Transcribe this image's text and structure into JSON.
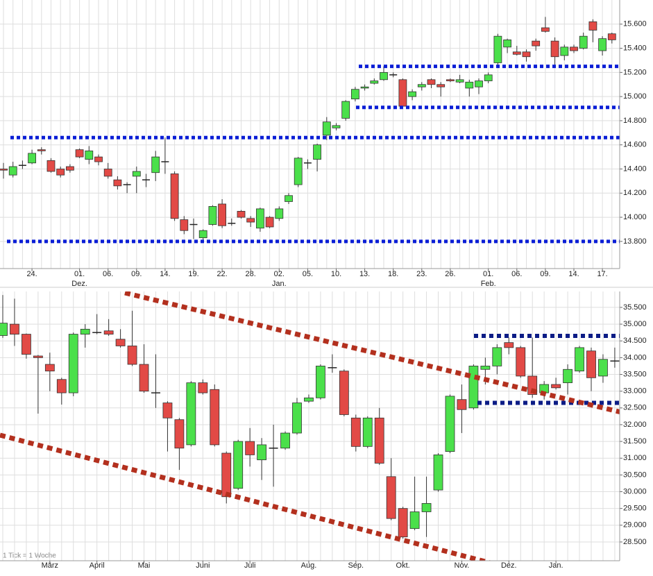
{
  "chart_data": [
    {
      "type": "candlestick",
      "categories": [
        null,
        null,
        null,
        "24.",
        null,
        null,
        null,
        null,
        "01.",
        null,
        null,
        "06.",
        null,
        null,
        "09.",
        null,
        null,
        "14.",
        null,
        null,
        "19.",
        null,
        null,
        "22.",
        null,
        null,
        "28.",
        null,
        null,
        "02.",
        null,
        null,
        "05.",
        null,
        null,
        "10.",
        null,
        null,
        "13.",
        null,
        null,
        "18.",
        null,
        null,
        "23.",
        null,
        null,
        "26.",
        null,
        null,
        null,
        "01.",
        null,
        null,
        "06.",
        null,
        null,
        "09.",
        null,
        null,
        "14.",
        null,
        null,
        "17.",
        null
      ],
      "month_labels": [
        null,
        null,
        null,
        null,
        null,
        null,
        null,
        null,
        "Dez.",
        null,
        null,
        null,
        null,
        null,
        null,
        null,
        null,
        null,
        null,
        null,
        null,
        null,
        null,
        null,
        null,
        null,
        null,
        null,
        null,
        "Jan.",
        null,
        null,
        null,
        null,
        null,
        null,
        null,
        null,
        null,
        null,
        null,
        null,
        null,
        null,
        null,
        null,
        null,
        null,
        null,
        null,
        null,
        "Feb.",
        null,
        null,
        null,
        null,
        null,
        null,
        null,
        null,
        null,
        null,
        null,
        null,
        null
      ],
      "open": [
        14400,
        14350,
        14430,
        14450,
        14560,
        14470,
        14400,
        14420,
        14560,
        14480,
        14500,
        14400,
        14310,
        14270,
        14340,
        14310,
        14370,
        14460,
        14360,
        13980,
        13940,
        13830,
        13940,
        14110,
        13950,
        14050,
        13990,
        13910,
        14000,
        13990,
        14130,
        14270,
        14450,
        14480,
        14680,
        14740,
        14820,
        14980,
        15070,
        15110,
        15140,
        15180,
        15140,
        15000,
        15080,
        15140,
        15100,
        15140,
        15120,
        15070,
        15080,
        15130,
        15280,
        15410,
        15370,
        15370,
        15460,
        15570,
        15460,
        15340,
        15410,
        15400,
        15620,
        15380,
        15520
      ],
      "high": [
        14450,
        14460,
        14470,
        14560,
        14580,
        14490,
        14420,
        14440,
        14570,
        14590,
        14520,
        14450,
        14340,
        14290,
        14420,
        14360,
        14550,
        14660,
        14380,
        14010,
        13990,
        13900,
        14100,
        14150,
        13990,
        14060,
        14010,
        14080,
        14010,
        14090,
        14200,
        14500,
        14480,
        14610,
        14830,
        14780,
        14970,
        15080,
        15100,
        15150,
        15250,
        15200,
        15150,
        15060,
        15120,
        15150,
        15120,
        15150,
        15180,
        15140,
        15150,
        15200,
        15520,
        15480,
        15420,
        15390,
        15480,
        15660,
        15490,
        15430,
        15430,
        15530,
        15640,
        15500,
        15530
      ],
      "low": [
        14320,
        14330,
        14400,
        14440,
        14520,
        14370,
        14330,
        14370,
        14490,
        14440,
        14430,
        14320,
        14230,
        14200,
        14200,
        14250,
        14300,
        14360,
        13970,
        13860,
        13820,
        13810,
        13930,
        13910,
        13930,
        13990,
        13920,
        13880,
        13910,
        13970,
        14110,
        14250,
        14400,
        14380,
        14640,
        14720,
        14800,
        14960,
        15050,
        15100,
        15130,
        15160,
        14900,
        14970,
        15050,
        15070,
        15000,
        15120,
        15110,
        15000,
        15020,
        15110,
        15260,
        15360,
        15340,
        15290,
        15380,
        15530,
        15260,
        15300,
        15360,
        15390,
        15450,
        15340,
        15440
      ],
      "close": [
        14390,
        14420,
        14430,
        14530,
        14550,
        14380,
        14350,
        14390,
        14500,
        14550,
        14460,
        14340,
        14260,
        14270,
        14380,
        14310,
        14500,
        14460,
        13990,
        13890,
        13940,
        13890,
        14090,
        13930,
        13950,
        14000,
        13960,
        14070,
        13920,
        14070,
        14180,
        14490,
        14450,
        14600,
        14790,
        14760,
        14960,
        15060,
        15080,
        15130,
        15200,
        15180,
        14920,
        15040,
        15100,
        15100,
        15080,
        15130,
        15140,
        15120,
        15130,
        15180,
        15500,
        15470,
        15350,
        15330,
        15420,
        15540,
        15330,
        15410,
        15380,
        15500,
        15550,
        15480,
        15470
      ],
      "up_color": "#4be04b",
      "down_color": "#e24a46",
      "levels": [
        14660,
        13800,
        15250,
        14910
      ],
      "level_color": "#0a1ed6",
      "ylim": [
        13575,
        15800
      ],
      "yticks": [
        {
          "value": 13800,
          "label": "13.800"
        },
        {
          "value": 14000,
          "label": "14.000"
        },
        {
          "value": 14200,
          "label": "14.200"
        },
        {
          "value": 14400,
          "label": "14.400"
        },
        {
          "value": 14600,
          "label": "14.600"
        },
        {
          "value": 14800,
          "label": "14.800"
        },
        {
          "value": 15000,
          "label": "15.000"
        },
        {
          "value": 15200,
          "label": "15.200"
        },
        {
          "value": 15400,
          "label": "15.400"
        },
        {
          "value": 15600,
          "label": "15.600"
        }
      ],
      "grid": true
    },
    {
      "type": "candlestick",
      "categories": [
        null,
        null,
        null,
        null,
        "März",
        null,
        null,
        null,
        "April",
        null,
        null,
        null,
        "Mai",
        null,
        null,
        null,
        null,
        "Juni",
        null,
        null,
        null,
        "Juli",
        null,
        null,
        null,
        null,
        "Aug.",
        null,
        null,
        null,
        "Sep.",
        null,
        null,
        null,
        "Okt.",
        null,
        null,
        null,
        null,
        "Nov.",
        null,
        null,
        null,
        "Dez.",
        null,
        null,
        null,
        "Jan.",
        null,
        null,
        null,
        null,
        null
      ],
      "open": [
        34660,
        35000,
        34700,
        34050,
        33800,
        33350,
        32950,
        34700,
        34750,
        34800,
        34550,
        34350,
        33800,
        32950,
        32650,
        32150,
        31400,
        33250,
        33050,
        31150,
        30100,
        31500,
        30950,
        31300,
        31300,
        31750,
        32700,
        32800,
        33700,
        33600,
        32200,
        31350,
        32200,
        30450,
        29500,
        28900,
        29400,
        30050,
        31200,
        32750,
        32500,
        33650,
        33750,
        34450,
        34300,
        33450,
        32950,
        33200,
        33250,
        33600,
        34200,
        33450,
        33900
      ],
      "high": [
        35870,
        35760,
        34720,
        34080,
        34150,
        33400,
        34750,
        35000,
        35300,
        35150,
        34850,
        35400,
        34400,
        34100,
        32700,
        32200,
        33300,
        33350,
        33200,
        31200,
        31550,
        31900,
        31600,
        32000,
        31800,
        32800,
        32900,
        33800,
        34100,
        33650,
        32300,
        32250,
        32500,
        31000,
        29550,
        30450,
        30450,
        31150,
        32900,
        33200,
        33800,
        34000,
        34400,
        34600,
        34350,
        34600,
        33300,
        33400,
        33800,
        34350,
        34300,
        34100,
        34300
      ],
      "low": [
        34590,
        34350,
        33970,
        32330,
        33000,
        32600,
        32850,
        34300,
        34700,
        34650,
        34300,
        33750,
        32950,
        32500,
        31200,
        30650,
        31350,
        32900,
        31350,
        29650,
        30050,
        30750,
        30350,
        30150,
        31250,
        31700,
        32650,
        32750,
        33550,
        32250,
        31200,
        31300,
        30800,
        29150,
        28600,
        28850,
        28650,
        30000,
        31150,
        31750,
        32450,
        33200,
        33500,
        34100,
        33400,
        32800,
        32750,
        33050,
        32900,
        33550,
        33000,
        33250,
        33700
      ],
      "close": [
        35030,
        34700,
        34100,
        34000,
        33600,
        32950,
        34700,
        34850,
        34750,
        34700,
        34350,
        33800,
        33000,
        32950,
        32200,
        31300,
        33250,
        32950,
        31400,
        29850,
        31500,
        31100,
        31400,
        31300,
        31750,
        32650,
        32800,
        33750,
        33700,
        32300,
        31350,
        32200,
        30850,
        29200,
        28650,
        29400,
        29650,
        31100,
        32850,
        32450,
        33750,
        33750,
        34300,
        34300,
        33450,
        32900,
        33200,
        33100,
        33650,
        34300,
        33400,
        33950,
        33900
      ],
      "up_color": "#4be04b",
      "down_color": "#e24a46",
      "levels": [
        34650,
        32650
      ],
      "level_color": "#0c1c86",
      "trend_color": "#b3301e",
      "note": "1 Tick = 1 Woche",
      "ylim": [
        27940,
        35975
      ],
      "yticks": [
        {
          "value": 28500,
          "label": "28.500"
        },
        {
          "value": 29000,
          "label": "29.000"
        },
        {
          "value": 29500,
          "label": "29.500"
        },
        {
          "value": 30000,
          "label": "30.000"
        },
        {
          "value": 30500,
          "label": "30.500"
        },
        {
          "value": 31000,
          "label": "31.000"
        },
        {
          "value": 31500,
          "label": "31.500"
        },
        {
          "value": 32000,
          "label": "32.000"
        },
        {
          "value": 32500,
          "label": "32.500"
        },
        {
          "value": 33000,
          "label": "33.000"
        },
        {
          "value": 33500,
          "label": "33.500"
        },
        {
          "value": 34000,
          "label": "34.000"
        },
        {
          "value": 34500,
          "label": "34.500"
        },
        {
          "value": 35000,
          "label": "35.000"
        },
        {
          "value": 35500,
          "label": "35.500"
        }
      ],
      "grid": true
    }
  ]
}
